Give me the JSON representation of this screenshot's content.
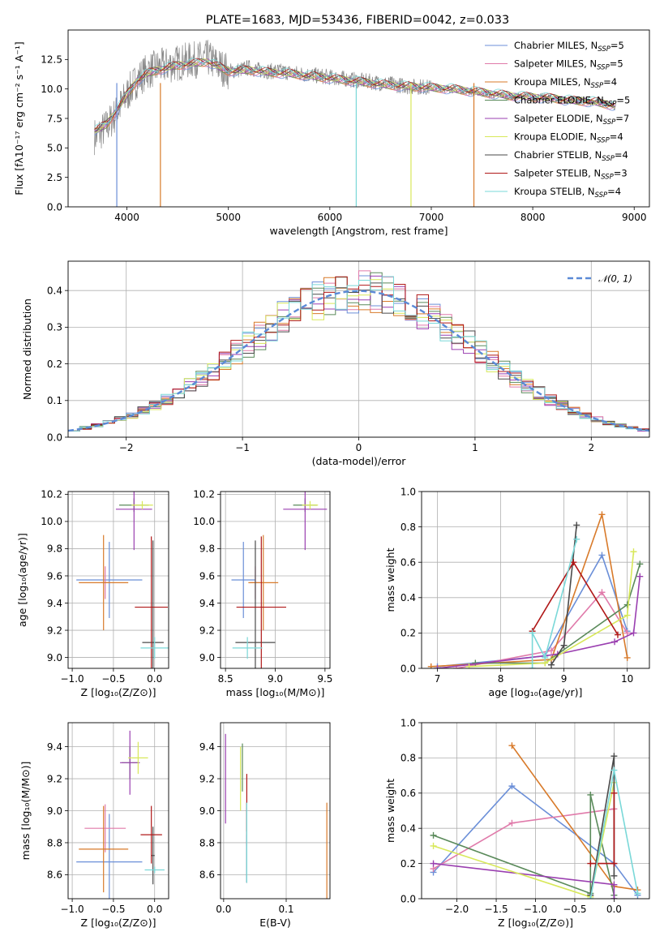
{
  "title": "PLATE=1683, MJD=53436, FIBERID=0042, z=0.033",
  "colors": [
    "#6b8fd8",
    "#e07aaa",
    "#d87a2a",
    "#5a8a5a",
    "#9a3fb0",
    "#d8e85a",
    "#4a4a4a",
    "#b01818",
    "#7ad8d8"
  ],
  "legend": [
    {
      "pre": "Chabrier MILES, N",
      "sub": "SSP",
      "post": "=5"
    },
    {
      "pre": "Salpeter MILES, N",
      "sub": "SSP",
      "post": "=5"
    },
    {
      "pre": "Kroupa MILES, N",
      "sub": "SSP",
      "post": "=4"
    },
    {
      "pre": "Chabrier ELODIE, N",
      "sub": "SSP",
      "post": "=5"
    },
    {
      "pre": "Salpeter ELODIE, N",
      "sub": "SSP",
      "post": "=7"
    },
    {
      "pre": "Kroupa ELODIE, N",
      "sub": "SSP",
      "post": "=4"
    },
    {
      "pre": "Chabrier STELIB, N",
      "sub": "SSP",
      "post": "=4"
    },
    {
      "pre": "Salpeter STELIB, N",
      "sub": "SSP",
      "post": "=3"
    },
    {
      "pre": "Kroupa STELIB, N",
      "sub": "SSP",
      "post": "=4"
    }
  ],
  "chart_data": [
    {
      "id": "spectrum",
      "type": "line",
      "xlabel": "wavelength [Angstrom, rest frame]",
      "ylabel": "Flux [fλ10⁻¹⁷ erg cm⁻² s⁻¹ A⁻¹]",
      "xlim": [
        3420,
        9150
      ],
      "ylim": [
        0,
        15
      ],
      "xticks": [
        4000,
        5000,
        6000,
        7000,
        8000,
        9000
      ],
      "yticks": [
        0,
        2.5,
        5,
        7.5,
        10,
        12.5
      ],
      "ytick_labels": [
        "0.0",
        "2.5",
        "5.0",
        "7.5",
        "10.0",
        "12.5"
      ],
      "data_x": [
        3700,
        3800,
        3900,
        4000,
        4100,
        4200,
        4300,
        4400,
        4500,
        4600,
        4700,
        4800,
        4900,
        5000,
        5100,
        5200,
        5300,
        5400,
        5500,
        5600,
        5700,
        5800,
        5900,
        6000,
        6100,
        6200,
        6300,
        6400,
        6500,
        6600,
        6700,
        6800,
        6900,
        7000,
        7100,
        7200,
        7300,
        7400,
        7500,
        7600,
        7700,
        7800,
        7900,
        8000,
        8100,
        8200,
        8300,
        8400,
        8500,
        8600,
        8700,
        8800
      ],
      "data_y": [
        6.0,
        6.8,
        8.0,
        9.5,
        10.8,
        11.5,
        11.8,
        12.0,
        12.2,
        12.4,
        12.5,
        12.6,
        12.0,
        11.5,
        11.6,
        11.8,
        11.6,
        11.5,
        11.5,
        11.4,
        11.3,
        11.2,
        11.1,
        11.0,
        10.9,
        10.8,
        10.7,
        10.6,
        10.5,
        10.4,
        10.3,
        10.2,
        10.2,
        10.1,
        10.1,
        10.0,
        9.9,
        9.8,
        9.7,
        9.5,
        9.5,
        9.3,
        9.4,
        9.3,
        9.3,
        9.2,
        9.1,
        9.0,
        9.0,
        8.9,
        8.8,
        8.5
      ],
      "model_x": [
        3700,
        3800,
        3900,
        4000,
        4100,
        4200,
        4300,
        4400,
        4500,
        4600,
        4700,
        4800,
        4900,
        5000,
        5200,
        5400,
        5600,
        5800,
        6000,
        6200,
        6400,
        6600,
        6800,
        7000,
        7200,
        7400,
        7600,
        7800,
        8000,
        8200,
        8400,
        8600,
        8800
      ],
      "model_y": [
        6.5,
        7.0,
        8.2,
        9.5,
        10.7,
        11.3,
        11.6,
        11.8,
        12.0,
        12.1,
        12.2,
        12.3,
        11.9,
        11.5,
        11.6,
        11.4,
        11.3,
        11.1,
        10.9,
        10.7,
        10.5,
        10.3,
        10.2,
        10.1,
        10.0,
        9.8,
        9.6,
        9.4,
        9.3,
        9.2,
        9.0,
        8.9,
        8.6
      ]
    },
    {
      "id": "residuals",
      "type": "line",
      "xlabel": "(data-model)/error",
      "ylabel": "Normed distribution",
      "xlim": [
        -2.5,
        2.5
      ],
      "ylim": [
        0,
        0.48
      ],
      "xticks": [
        -2,
        -1,
        0,
        1,
        2
      ],
      "xtick_labels": [
        "−2",
        "−1",
        "0",
        "1",
        "2"
      ],
      "yticks": [
        0,
        0.1,
        0.2,
        0.3,
        0.4
      ],
      "ytick_labels": [
        "0.0",
        "0.1",
        "0.2",
        "0.3",
        "0.4"
      ],
      "legend_label": "𝒩(0, 1)",
      "bin_width": 0.1
    },
    {
      "id": "age_Z",
      "type": "errorbar",
      "xlabel": "Z [log₁₀(Z/Z⊙)]",
      "ylabel": "age  [log₁₀(age/yr)]",
      "xlim": [
        -1.05,
        0.17
      ],
      "ylim": [
        8.92,
        10.22
      ],
      "xticks": [
        -1,
        -0.5,
        0
      ],
      "xtick_labels": [
        "−1.0",
        "−0.5",
        "0.0"
      ],
      "yticks": [
        9,
        9.2,
        9.4,
        9.6,
        9.8,
        10,
        10.2
      ],
      "ytick_labels": [
        "9.0",
        "9.2",
        "9.4",
        "9.6",
        "9.8",
        "10.0",
        "10.2"
      ],
      "points": [
        {
          "s": 0,
          "x": -0.55,
          "xe": 0.4,
          "y": 9.57,
          "ye": 0.28
        },
        {
          "s": 1,
          "x": -0.6,
          "xe": 0.05,
          "y": 9.55,
          "ye": 0.12
        },
        {
          "s": 2,
          "x": -0.62,
          "xe": 0.3,
          "y": 9.55,
          "ye": 0.35
        },
        {
          "s": 3,
          "x": -0.25,
          "xe": 0.18,
          "y": 10.12,
          "ye": 0.05
        },
        {
          "s": 4,
          "x": -0.25,
          "xe": 0.22,
          "y": 10.09,
          "ye": 0.3
        },
        {
          "s": 5,
          "x": -0.15,
          "xe": 0.13,
          "y": 10.12,
          "ye": 0.03
        },
        {
          "s": 6,
          "x": -0.02,
          "xe": 0.13,
          "y": 9.11,
          "ye": 0.75
        },
        {
          "s": 7,
          "x": -0.04,
          "xe": 0.2,
          "y": 9.37,
          "ye": 0.52
        },
        {
          "s": 8,
          "x": 0.0,
          "xe": 0.17,
          "y": 9.07,
          "ye": 0.08
        }
      ]
    },
    {
      "id": "age_mass",
      "type": "errorbar",
      "xlabel": "mass [log₁₀(M/M⊙)]",
      "ylabel": "",
      "xlim": [
        8.45,
        9.55
      ],
      "ylim": [
        8.92,
        10.22
      ],
      "xticks": [
        8.5,
        9,
        9.5
      ],
      "xtick_labels": [
        "8.5",
        "9.0",
        "9.5"
      ],
      "yticks": [
        9,
        9.2,
        9.4,
        9.6,
        9.8,
        10,
        10.2
      ],
      "ytick_labels": [
        "9.0",
        "9.2",
        "9.4",
        "9.6",
        "9.8",
        "10.0",
        "10.2"
      ],
      "points": [
        {
          "s": 0,
          "x": 8.68,
          "xe": 0.12,
          "y": 9.57,
          "ye": 0.28
        },
        {
          "s": 1,
          "x": 8.8,
          "xe": 0.05,
          "y": 9.55,
          "ye": 0.12
        },
        {
          "s": 2,
          "x": 8.88,
          "xe": 0.15,
          "y": 9.55,
          "ye": 0.35
        },
        {
          "s": 3,
          "x": 9.3,
          "xe": 0.12,
          "y": 10.12,
          "ye": 0.05
        },
        {
          "s": 4,
          "x": 9.3,
          "xe": 0.22,
          "y": 10.09,
          "ye": 0.3
        },
        {
          "s": 5,
          "x": 9.35,
          "xe": 0.08,
          "y": 10.12,
          "ye": 0.03
        },
        {
          "s": 6,
          "x": 8.8,
          "xe": 0.2,
          "y": 9.11,
          "ye": 0.75
        },
        {
          "s": 7,
          "x": 8.86,
          "xe": 0.25,
          "y": 9.37,
          "ye": 0.52
        },
        {
          "s": 8,
          "x": 8.72,
          "xe": 0.15,
          "y": 9.07,
          "ye": 0.08
        }
      ]
    },
    {
      "id": "weight_age",
      "type": "line",
      "xlabel": "age  [log₁₀(age/yr)]",
      "ylabel": "mass weight",
      "xlim": [
        6.75,
        10.35
      ],
      "ylim": [
        0,
        1
      ],
      "xticks": [
        7,
        8,
        9,
        10
      ],
      "xtick_labels": [
        "7",
        "8",
        "9",
        "10"
      ],
      "yticks": [
        0,
        0.2,
        0.4,
        0.6,
        0.8,
        1
      ],
      "ytick_labels": [
        "0.0",
        "0.2",
        "0.4",
        "0.6",
        "0.8",
        "1.0"
      ],
      "series": [
        {
          "s": 0,
          "x": [
            7.0,
            8.7,
            9.6,
            10.0
          ],
          "y": [
            0.01,
            0.07,
            0.64,
            0.21
          ]
        },
        {
          "s": 1,
          "x": [
            7.3,
            8.8,
            9.6,
            10.0
          ],
          "y": [
            0.0,
            0.1,
            0.43,
            0.2
          ]
        },
        {
          "s": 2,
          "x": [
            6.9,
            8.8,
            9.6,
            10.0
          ],
          "y": [
            0.01,
            0.05,
            0.87,
            0.06
          ]
        },
        {
          "s": 3,
          "x": [
            7.6,
            8.7,
            10.0,
            10.2
          ],
          "y": [
            0.03,
            0.03,
            0.36,
            0.59
          ]
        },
        {
          "s": 4,
          "x": [
            7.0,
            8.9,
            9.8,
            10.1,
            10.2
          ],
          "y": [
            0.0,
            0.08,
            0.15,
            0.2,
            0.52
          ]
        },
        {
          "s": 5,
          "x": [
            7.5,
            8.7,
            10.0,
            10.1
          ],
          "y": [
            0.01,
            0.03,
            0.3,
            0.66
          ]
        },
        {
          "s": 6,
          "x": [
            8.8,
            9.0,
            9.2
          ],
          "y": [
            0.02,
            0.13,
            0.81
          ]
        },
        {
          "s": 7,
          "x": [
            8.5,
            9.15,
            9.85
          ],
          "y": [
            0.21,
            0.6,
            0.19
          ]
        },
        {
          "s": 8,
          "x": [
            8.5,
            8.5,
            8.7,
            9.2
          ],
          "y": [
            0.0,
            0.2,
            0.06,
            0.73
          ]
        }
      ]
    },
    {
      "id": "mass_Z",
      "type": "errorbar",
      "xlabel": "Z [log₁₀(Z/Z⊙)]",
      "ylabel": "mass [log₁₀(M/M⊙)]",
      "xlim": [
        -1.05,
        0.17
      ],
      "ylim": [
        8.45,
        9.55
      ],
      "xticks": [
        -1,
        -0.5,
        0
      ],
      "xtick_labels": [
        "−1.0",
        "−0.5",
        "0.0"
      ],
      "yticks": [
        8.6,
        8.8,
        9,
        9.2,
        9.4
      ],
      "ytick_labels": [
        "8.6",
        "8.8",
        "9.0",
        "9.2",
        "9.4"
      ],
      "points": [
        {
          "s": 0,
          "x": -0.55,
          "xe": 0.4,
          "y": 8.68,
          "ye": 0.3
        },
        {
          "s": 1,
          "x": -0.6,
          "xe": 0.25,
          "y": 8.89,
          "ye": 0.15
        },
        {
          "s": 2,
          "x": -0.62,
          "xe": 0.3,
          "y": 8.76,
          "ye": 0.27
        },
        {
          "s": 3,
          "x": -0.3,
          "xe": 0.1,
          "y": 9.3,
          "ye": 0.1
        },
        {
          "s": 4,
          "x": -0.3,
          "xe": 0.12,
          "y": 9.3,
          "ye": 0.2
        },
        {
          "s": 5,
          "x": -0.2,
          "xe": 0.12,
          "y": 9.33,
          "ye": 0.1
        },
        {
          "s": 6,
          "x": -0.02,
          "xe": 0.02,
          "y": 8.72,
          "ye": 0.18
        },
        {
          "s": 7,
          "x": -0.04,
          "xe": 0.13,
          "y": 8.85,
          "ye": 0.18
        },
        {
          "s": 8,
          "x": 0.0,
          "xe": 0.12,
          "y": 8.63,
          "ye": 0.02
        }
      ]
    },
    {
      "id": "mass_EBV",
      "type": "errorbar",
      "xlabel": "E(B-V)",
      "ylabel": "",
      "xlim": [
        -0.005,
        0.17
      ],
      "ylim": [
        8.45,
        9.55
      ],
      "xticks": [
        0,
        0.1
      ],
      "xtick_labels": [
        "0.0",
        "0.1"
      ],
      "yticks": [
        8.6,
        8.8,
        9,
        9.2,
        9.4
      ],
      "ytick_labels": [
        "8.6",
        "8.8",
        "9.0",
        "9.2",
        "9.4"
      ],
      "points": [
        {
          "s": 0,
          "x": 0.037,
          "xe": 0,
          "y": 8.7,
          "ye": 0.15
        },
        {
          "s": 1,
          "x": 0.037,
          "xe": 0,
          "y": 8.9,
          "ye": 0.12
        },
        {
          "s": 2,
          "x": 0.165,
          "xe": 0,
          "y": 8.75,
          "ye": 0.3
        },
        {
          "s": 3,
          "x": 0.03,
          "xe": 0,
          "y": 9.27,
          "ye": 0.15
        },
        {
          "s": 4,
          "x": 0.003,
          "xe": 0,
          "y": 9.2,
          "ye": 0.28
        },
        {
          "s": 5,
          "x": 0.027,
          "xe": 0,
          "y": 9.2,
          "ye": 0.2
        },
        {
          "s": 6,
          "x": 0.037,
          "xe": 0,
          "y": 8.8,
          "ye": 0.25
        },
        {
          "s": 7,
          "x": 0.037,
          "xe": 0,
          "y": 9.05,
          "ye": 0.18
        },
        {
          "s": 8,
          "x": 0.037,
          "xe": 0,
          "y": 8.8,
          "ye": 0.25
        }
      ]
    },
    {
      "id": "weight_Z",
      "type": "line",
      "xlabel": "Z [log₁₀(Z/Z⊙)]",
      "ylabel": "mass weight",
      "xlim": [
        -2.45,
        0.45
      ],
      "ylim": [
        0,
        1
      ],
      "xticks": [
        -2,
        -1.5,
        -1,
        -0.5,
        0
      ],
      "xtick_labels": [
        "−2.0",
        "−1.5",
        "−1.0",
        "−0.5",
        "0.0"
      ],
      "yticks": [
        0,
        0.2,
        0.4,
        0.6,
        0.8,
        1
      ],
      "ytick_labels": [
        "0.0",
        "0.2",
        "0.4",
        "0.6",
        "0.8",
        "1.0"
      ],
      "series": [
        {
          "s": 0,
          "x": [
            -2.3,
            -1.3,
            0.0,
            0.3
          ],
          "y": [
            0.15,
            0.64,
            0.2,
            0.02
          ]
        },
        {
          "s": 1,
          "x": [
            -2.3,
            -1.3,
            0.0,
            0.0
          ],
          "y": [
            0.17,
            0.43,
            0.51,
            0.2
          ]
        },
        {
          "s": 2,
          "x": [
            -1.3,
            0.0,
            0.3
          ],
          "y": [
            0.87,
            0.07,
            0.05
          ]
        },
        {
          "s": 3,
          "x": [
            -2.3,
            -0.3,
            -0.3,
            0.0,
            0.0
          ],
          "y": [
            0.36,
            0.03,
            0.59,
            0.02,
            0.0
          ]
        },
        {
          "s": 4,
          "x": [
            -2.3,
            0.0,
            0.0
          ],
          "y": [
            0.2,
            0.08,
            0.0
          ]
        },
        {
          "s": 5,
          "x": [
            -2.3,
            -0.3,
            0.0
          ],
          "y": [
            0.3,
            0.01,
            0.66
          ]
        },
        {
          "s": 6,
          "x": [
            -0.3,
            0.0,
            0.0
          ],
          "y": [
            0.02,
            0.81,
            0.13
          ]
        },
        {
          "s": 7,
          "x": [
            -0.3,
            0.0,
            0.0
          ],
          "y": [
            0.2,
            0.2,
            0.6
          ]
        },
        {
          "s": 8,
          "x": [
            -0.3,
            0.0,
            0.3
          ],
          "y": [
            0.0,
            0.73,
            0.03
          ]
        }
      ]
    }
  ]
}
